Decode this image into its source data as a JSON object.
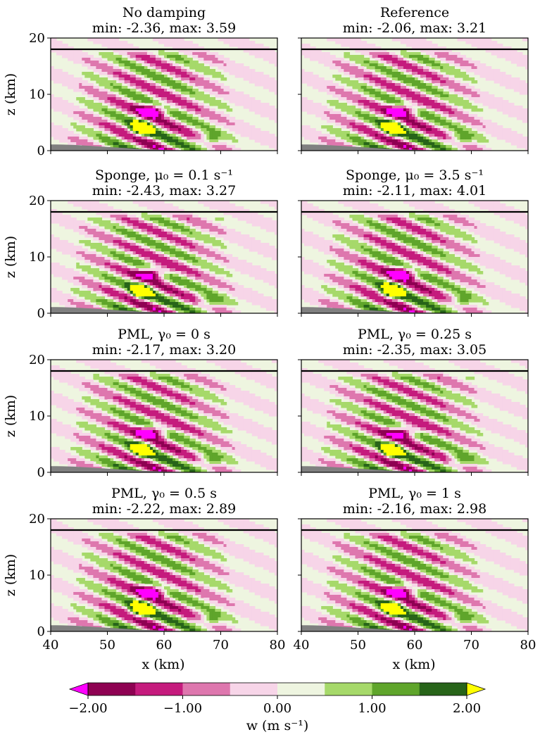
{
  "chart_data": {
    "type": "heatmap",
    "panels": [
      {
        "title": "No damping",
        "range_text": "min: -2.36, max: 3.59",
        "min": -2.36,
        "max": 3.59
      },
      {
        "title": "Reference",
        "range_text": "min: -2.06, max: 3.21",
        "min": -2.06,
        "max": 3.21
      },
      {
        "title": "Sponge, μ₀ = 0.1 s⁻¹",
        "range_text": "min: -2.43, max: 3.27",
        "min": -2.43,
        "max": 3.27
      },
      {
        "title": "Sponge, μ₀ = 3.5 s⁻¹",
        "range_text": "min: -2.11, max: 4.01",
        "min": -2.11,
        "max": 4.01
      },
      {
        "title": "PML, γ₀ = 0 s",
        "range_text": "min: -2.17, max: 3.20",
        "min": -2.17,
        "max": 3.2
      },
      {
        "title": "PML, γ₀ = 0.25 s",
        "range_text": "min: -2.35, max: 3.05",
        "min": -2.35,
        "max": 3.05
      },
      {
        "title": "PML, γ₀ = 0.5 s",
        "range_text": "min: -2.22, max: 2.89",
        "min": -2.22,
        "max": 2.89
      },
      {
        "title": "PML, γ₀ = 1 s",
        "range_text": "min: -2.16, max: 2.98",
        "min": -2.16,
        "max": 2.98
      }
    ],
    "xlabel": "x (km)",
    "ylabel": "z (km)",
    "xlim": [
      40,
      80
    ],
    "ylim": [
      0,
      20
    ],
    "xticks": [
      "40",
      "50",
      "60",
      "70",
      "80"
    ],
    "yticks": [
      "0",
      "10",
      "20"
    ],
    "damping_layer_height_km": 18,
    "colorbar": {
      "label": "w (m s⁻¹)",
      "levels": [
        -2.0,
        -1.5,
        -1.0,
        -0.5,
        0.0,
        0.5,
        1.0,
        1.5,
        2.0
      ],
      "tick_labels": [
        "−2.00",
        "−1.00",
        "0.00",
        "1.00",
        "2.00"
      ],
      "tick_values": [
        -2,
        -1,
        0,
        1,
        2
      ],
      "colors": [
        "#8e0152",
        "#c51b7d",
        "#de77ae",
        "#f7d5e8",
        "#eef5e0",
        "#a6d96a",
        "#5fa52b",
        "#276419"
      ],
      "under_color": "#ff00ff",
      "over_color": "#ffff00"
    }
  }
}
